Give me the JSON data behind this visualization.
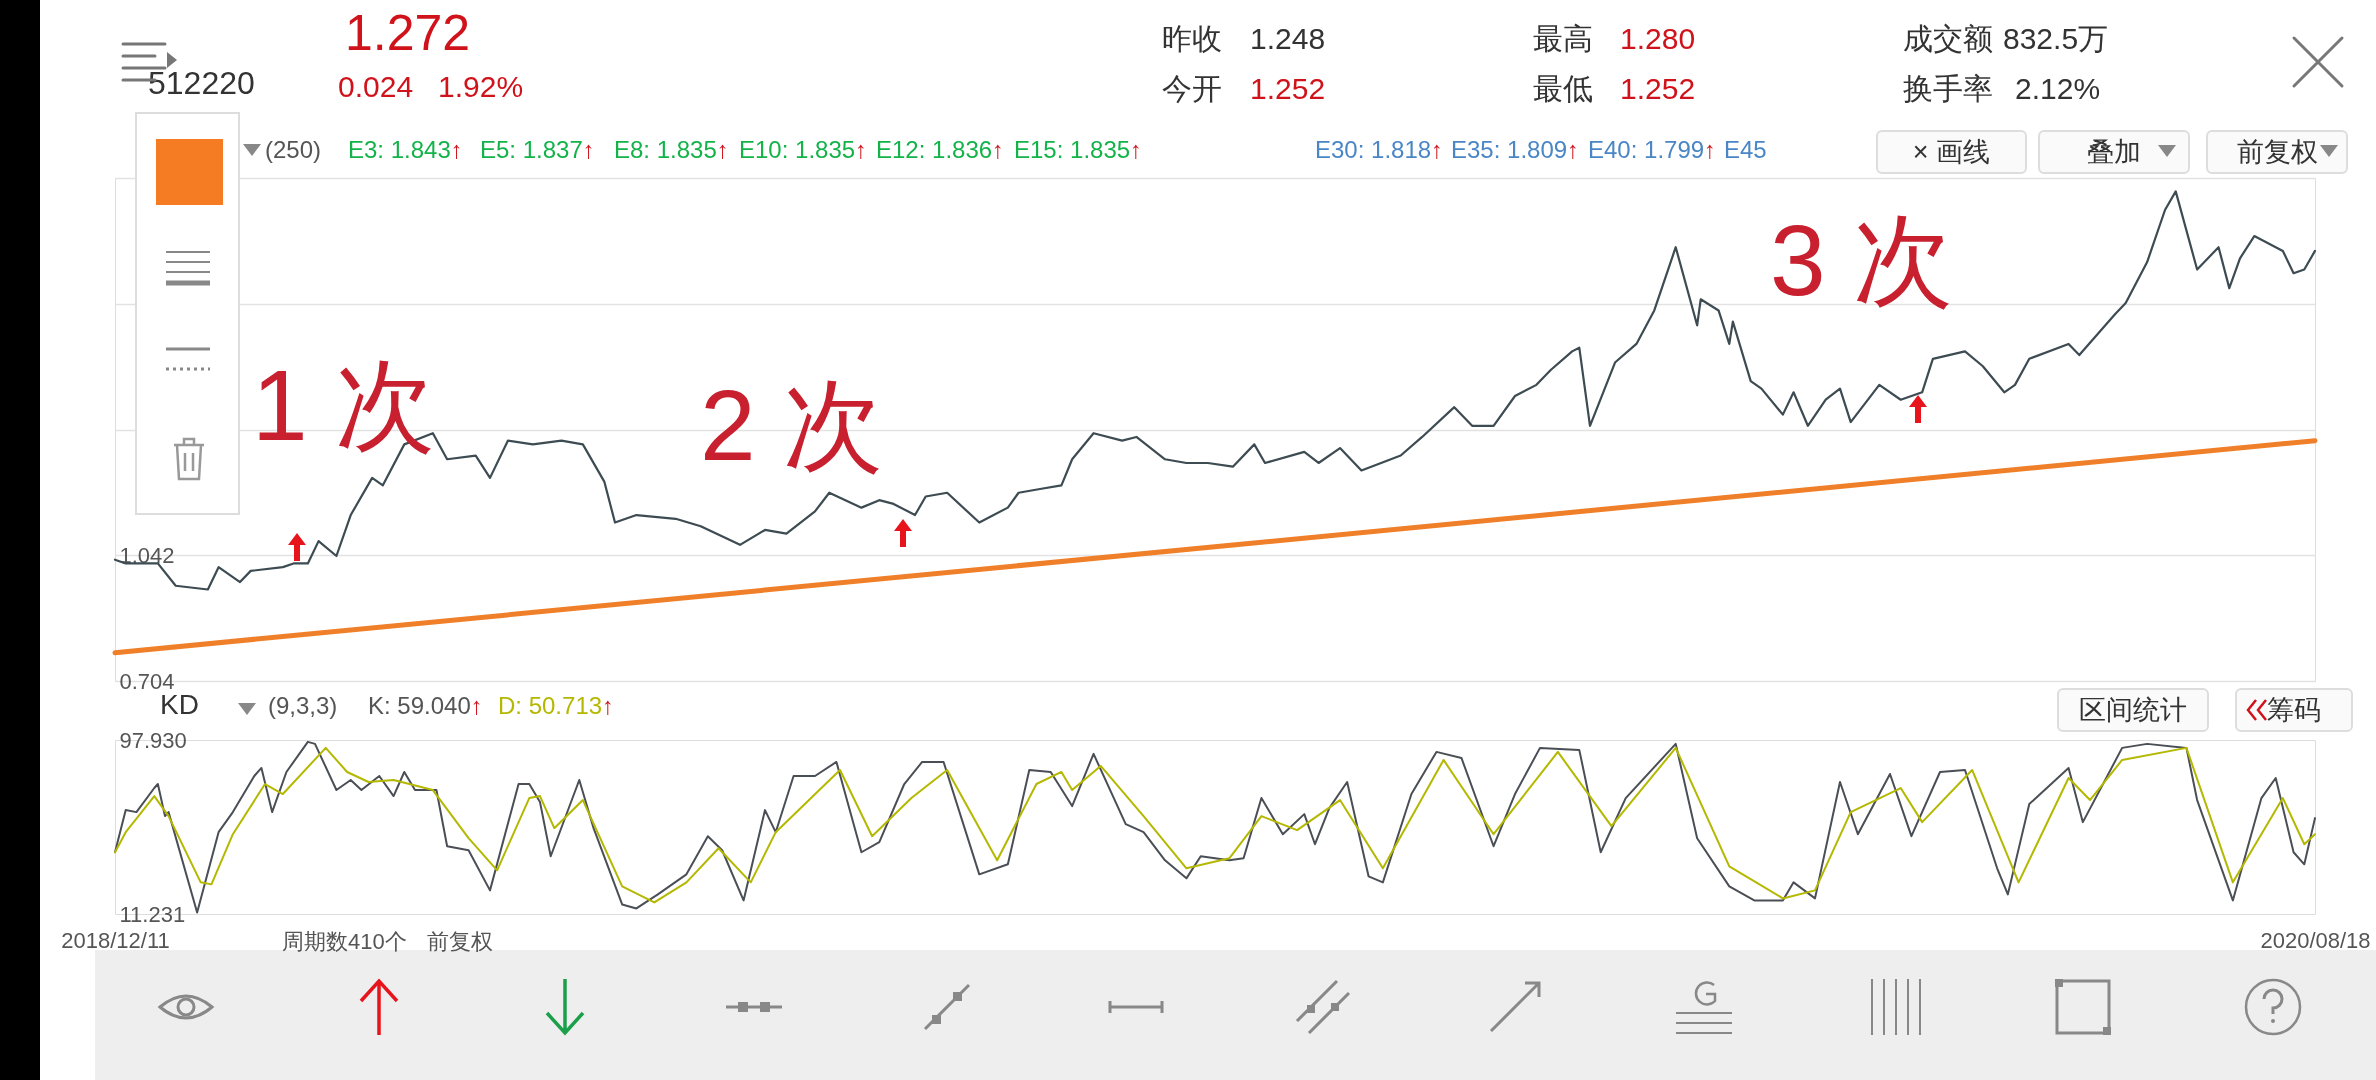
{
  "chart_data": [
    {
      "type": "line",
      "xlim": [
        "2018-12-11",
        "2020-08-18"
      ],
      "ylim": [
        0.704,
        2.056
      ],
      "yticks": [
        0.704,
        1.042,
        {
          "value": 1.38,
          "label": null
        },
        {
          "value": 1.718,
          "label": null
        },
        {
          "value": 2.056,
          "label": null
        }
      ],
      "grid": "y",
      "tick_labels": "y",
      "annotations": [
        "512220",
        "1.272",
        "0.024   1.92%",
        "昨收",
        "1.248",
        "今开",
        "1.252",
        "最高",
        "1.280",
        "最低",
        "1.252",
        "成交额",
        "832.5万",
        "换手率",
        "2.12%",
        "(250)",
        "E3: 1.843↑",
        "E5: 1.837↑",
        "E8: 1.835↑",
        "E10: 1.835↑",
        "E12: 1.836↑",
        "E15: 1.835↑",
        "E30: 1.818↑",
        "E35: 1.809↑",
        "E40: 1.799↑",
        "E45",
        "× 画线",
        "叠加",
        "前复权",
        "1 次",
        "2 次",
        "3 次"
      ],
      "series": [
        {
          "color": "#3d4b52",
          "x": [
            "2018-12-11",
            "2018-12-14",
            "2018-12-23",
            "2018-12-28",
            "2019-01-06",
            "2019-01-09",
            "2019-01-15",
            "2019-01-18",
            "2019-01-27",
            "2019-01-30",
            "2019-02-03",
            "2019-02-06",
            "2019-02-11",
            "2019-02-15",
            "2019-02-21",
            "2019-02-24",
            "2019-03-02",
            "2019-03-10",
            "2019-03-14",
            "2019-03-22",
            "2019-03-26",
            "2019-03-31",
            "2019-04-07",
            "2019-04-15",
            "2019-04-21",
            "2019-04-27",
            "2019-04-30",
            "2019-05-06",
            "2019-05-17",
            "2019-05-24",
            "2019-06-04",
            "2019-06-11",
            "2019-06-17",
            "2019-06-25",
            "2019-06-29",
            "2019-07-08",
            "2019-07-13",
            "2019-07-17",
            "2019-07-23",
            "2019-07-26",
            "2019-08-01",
            "2019-08-10",
            "2019-08-18",
            "2019-08-21",
            "2019-08-27",
            "2019-09-02",
            "2019-09-05",
            "2019-09-11",
            "2019-09-19",
            "2019-09-23",
            "2019-10-01",
            "2019-10-07",
            "2019-10-13",
            "2019-10-20",
            "2019-10-26",
            "2019-10-29",
            "2019-11-09",
            "2019-11-13",
            "2019-11-19",
            "2019-11-25",
            "2019-12-06",
            "2019-12-12",
            "2019-12-21",
            "2019-12-26",
            "2020-01-01",
            "2020-01-07",
            "2020-01-13",
            "2020-01-17",
            "2020-01-23",
            "2020-01-25",
            "2020-01-28",
            "2020-02-04",
            "2020-02-10",
            "2020-02-15",
            "2020-02-21",
            "2020-02-27",
            "2020-02-28",
            "2020-03-04",
            "2020-03-07",
            "2020-03-08",
            "2020-03-13",
            "2020-03-16",
            "2020-03-22",
            "2020-03-25",
            "2020-03-29",
            "2020-04-03",
            "2020-04-07",
            "2020-04-10",
            "2020-04-18",
            "2020-04-24",
            "2020-04-30",
            "2020-05-03",
            "2020-05-12",
            "2020-05-17",
            "2020-05-23",
            "2020-05-26",
            "2020-05-30",
            "2020-06-10",
            "2020-06-13",
            "2020-06-23",
            "2020-06-26",
            "2020-07-02",
            "2020-07-07",
            "2020-07-10",
            "2020-07-16",
            "2020-07-22",
            "2020-07-25",
            "2020-07-28",
            "2020-08-01",
            "2020-08-09",
            "2020-08-12",
            "2020-08-15",
            "2020-08-18"
          ],
          "values": [
            1.03,
            1.02,
            1.02,
            0.96,
            0.95,
            1.01,
            0.97,
            1.0,
            1.01,
            1.02,
            1.02,
            1.08,
            1.04,
            1.15,
            1.25,
            1.23,
            1.34,
            1.37,
            1.3,
            1.31,
            1.25,
            1.35,
            1.34,
            1.35,
            1.34,
            1.24,
            1.13,
            1.15,
            1.14,
            1.12,
            1.07,
            1.11,
            1.1,
            1.16,
            1.21,
            1.17,
            1.19,
            1.18,
            1.15,
            1.2,
            1.21,
            1.13,
            1.17,
            1.21,
            1.22,
            1.23,
            1.3,
            1.37,
            1.35,
            1.36,
            1.3,
            1.29,
            1.29,
            1.28,
            1.34,
            1.29,
            1.32,
            1.29,
            1.33,
            1.27,
            1.31,
            1.36,
            1.44,
            1.39,
            1.39,
            1.47,
            1.5,
            1.54,
            1.59,
            1.6,
            1.39,
            1.56,
            1.61,
            1.7,
            1.87,
            1.66,
            1.73,
            1.7,
            1.61,
            1.67,
            1.51,
            1.49,
            1.42,
            1.48,
            1.39,
            1.46,
            1.49,
            1.4,
            1.5,
            1.46,
            1.48,
            1.57,
            1.59,
            1.55,
            1.48,
            1.5,
            1.57,
            1.61,
            1.58,
            1.69,
            1.72,
            1.83,
            1.97,
            2.02,
            1.81,
            1.87,
            1.76,
            1.84,
            1.9,
            1.86,
            1.8,
            1.81,
            1.86
          ]
        },
        {
          "color": "#f07f2a",
          "x": [
            "2018-12-11",
            "2020-08-18"
          ],
          "values": [
            0.78,
            1.35
          ]
        }
      ]
    },
    {
      "type": "line",
      "xlim": [
        "2018-12-11",
        "2020-08-18"
      ],
      "xticks": [
        {
          "value": "2018-12-11",
          "label": "2018/12/11"
        },
        {
          "value": "2020-08-18",
          "label": "2020/08/18"
        }
      ],
      "ylim": [
        11.231,
        97.93
      ],
      "yticks": [
        11.231,
        {
          "value": 97.93,
          "label": "97.930"
        }
      ],
      "annotations": [
        "KD",
        "(9,3,3)",
        "K: 59.040↑",
        "D: 50.713↑",
        "区间统计",
        "筹码",
        "周期数410个",
        "前复权"
      ],
      "series": [
        {
          "color": "#4a4f55",
          "x": [
            "2018-12-11",
            "2018-12-14",
            "2018-12-17",
            "2018-12-22",
            "2018-12-23",
            "2018-12-25",
            "2018-12-26",
            "2019-01-03",
            "2019-01-09",
            "2019-01-13",
            "2019-01-19",
            "2019-01-21",
            "2019-01-24",
            "2019-01-28",
            "2019-02-03",
            "2019-02-05",
            "2019-02-11",
            "2019-02-15",
            "2019-02-18",
            "2019-02-23",
            "2019-02-27",
            "2019-03-02",
            "2019-03-05",
            "2019-03-11",
            "2019-03-14",
            "2019-03-20",
            "2019-03-26",
            "2019-04-03",
            "2019-04-06",
            "2019-04-09",
            "2019-04-12",
            "2019-04-20",
            "2019-04-24",
            "2019-05-02",
            "2019-05-06",
            "2019-05-12",
            "2019-05-20",
            "2019-05-26",
            "2019-05-30",
            "2019-06-05",
            "2019-06-11",
            "2019-06-14",
            "2019-06-19",
            "2019-06-25",
            "2019-07-01",
            "2019-07-08",
            "2019-07-13",
            "2019-07-20",
            "2019-07-25",
            "2019-07-31",
            "2019-08-10",
            "2019-08-18",
            "2019-08-24",
            "2019-08-30",
            "2019-09-05",
            "2019-09-11",
            "2019-09-20",
            "2019-09-25",
            "2019-10-01",
            "2019-10-07",
            "2019-10-11",
            "2019-10-19",
            "2019-10-23",
            "2019-10-28",
            "2019-11-03",
            "2019-11-09",
            "2019-11-12",
            "2019-11-16",
            "2019-11-21",
            "2019-11-27",
            "2019-12-01",
            "2019-12-09",
            "2019-12-16",
            "2019-12-23",
            "2020-01-01",
            "2020-01-07",
            "2020-01-14",
            "2020-01-25",
            "2020-01-31",
            "2020-02-07",
            "2020-02-21",
            "2020-02-27",
            "2020-03-07",
            "2020-03-14",
            "2020-03-22",
            "2020-03-25",
            "2020-03-31",
            "2020-04-07",
            "2020-04-12",
            "2020-04-21",
            "2020-04-27",
            "2020-05-05",
            "2020-05-12",
            "2020-05-21",
            "2020-05-24",
            "2020-05-30",
            "2020-06-10",
            "2020-06-14",
            "2020-06-25",
            "2020-07-02",
            "2020-07-13",
            "2020-07-16",
            "2020-07-26",
            "2020-08-03",
            "2020-08-07",
            "2020-08-12",
            "2020-08-15",
            "2020-08-18"
          ],
          "values": [
            42,
            63,
            62,
            74,
            76,
            60,
            62,
            12,
            52,
            62,
            80,
            84,
            62,
            82,
            97,
            96,
            73,
            78,
            73,
            80,
            70,
            82,
            73,
            73,
            45,
            43,
            23,
            76,
            76,
            67,
            40,
            78,
            54,
            16,
            14,
            21,
            31,
            50,
            43,
            18,
            63,
            52,
            80,
            80,
            87,
            42,
            47,
            76,
            87,
            87,
            31,
            36,
            83,
            82,
            65,
            91,
            56,
            52,
            38,
            29,
            40,
            38,
            39,
            69,
            51,
            61,
            46,
            64,
            77,
            30,
            27,
            71,
            92,
            89,
            45,
            71,
            94,
            93,
            42,
            69,
            96,
            49,
            25,
            18,
            18,
            27,
            19,
            77,
            51,
            81,
            50,
            82,
            83,
            34,
            21,
            66,
            84,
            57,
            94,
            96,
            94,
            68,
            18,
            69,
            79,
            42,
            36,
            59
          ]
        },
        {
          "color": "#b5b800",
          "x": [
            "2018-12-11",
            "2018-12-14",
            "2018-12-22",
            "2018-12-26",
            "2019-01-04",
            "2019-01-07",
            "2019-01-13",
            "2019-01-22",
            "2019-01-27",
            "2019-02-08",
            "2019-02-14",
            "2019-02-20",
            "2019-02-27",
            "2019-03-10",
            "2019-03-20",
            "2019-03-28",
            "2019-04-06",
            "2019-04-09",
            "2019-04-13",
            "2019-04-21",
            "2019-05-02",
            "2019-05-11",
            "2019-05-20",
            "2019-05-29",
            "2019-06-07",
            "2019-06-14",
            "2019-07-02",
            "2019-07-11",
            "2019-07-22",
            "2019-08-01",
            "2019-08-15",
            "2019-08-26",
            "2019-09-02",
            "2019-09-05",
            "2019-09-13",
            "2019-09-25",
            "2019-10-07",
            "2019-10-19",
            "2019-10-28",
            "2019-11-07",
            "2019-11-19",
            "2019-12-01",
            "2019-12-18",
            "2020-01-01",
            "2020-01-19",
            "2020-02-03",
            "2020-02-21",
            "2020-03-07",
            "2020-03-22",
            "2020-03-31",
            "2020-04-10",
            "2020-04-24",
            "2020-04-30",
            "2020-05-14",
            "2020-05-27",
            "2020-06-10",
            "2020-06-16",
            "2020-06-25",
            "2020-07-13",
            "2020-07-26",
            "2020-08-09",
            "2020-08-15",
            "2020-08-18"
          ],
          "values": [
            42,
            52,
            70,
            60,
            27,
            26,
            51,
            76,
            71,
            94,
            82,
            77,
            78,
            73,
            49,
            33,
            69,
            70,
            54,
            68,
            25,
            17,
            27,
            44,
            27,
            52,
            83,
            50,
            69,
            83,
            38,
            76,
            82,
            73,
            85,
            60,
            34,
            39,
            60,
            53,
            68,
            34,
            88,
            51,
            92,
            55,
            94,
            35,
            19,
            23,
            62,
            74,
            57,
            83,
            27,
            79,
            68,
            88,
            94,
            27,
            69,
            46,
            51
          ]
        }
      ]
    }
  ]
}
